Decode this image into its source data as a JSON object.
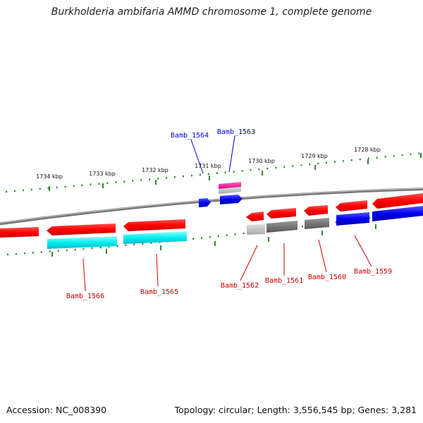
{
  "title": "Burkholderia ambifaria AMMD chromosome 1, complete genome",
  "scale_labels": [
    "1734 kbp",
    "1733 kbp",
    "1732 kbp",
    "1731 kbp",
    "1730 kbp",
    "1729 kbp",
    "1728 kbp"
  ],
  "genes": [
    {
      "name": "Bamb_1566",
      "color": "#cc0000"
    },
    {
      "name": "Bamb_1565",
      "color": "#cc0000"
    },
    {
      "name": "Bamb_1564",
      "color": "#0000cc"
    },
    {
      "name": "Bamb_1563",
      "color": "#0000cc"
    },
    {
      "name": "Bamb_1562",
      "color": "#cc0000"
    },
    {
      "name": "Bamb_1561",
      "color": "#cc0000"
    },
    {
      "name": "Bamb_1560",
      "color": "#cc0000"
    },
    {
      "name": "Bamb_1559",
      "color": "#cc0000"
    }
  ],
  "colors": {
    "forward_red": "#ff1a1a",
    "cyan": "#00e5ee",
    "blue": "#1010ee",
    "magenta": "#ee1199",
    "gray": "#777777",
    "scale_dots": "#338833",
    "backbone": "#888888"
  },
  "footer": {
    "accession": "Accession: NC_008390",
    "summary": "Topology: circular; Length: 3,556,545 bp; Genes: 3,281"
  }
}
